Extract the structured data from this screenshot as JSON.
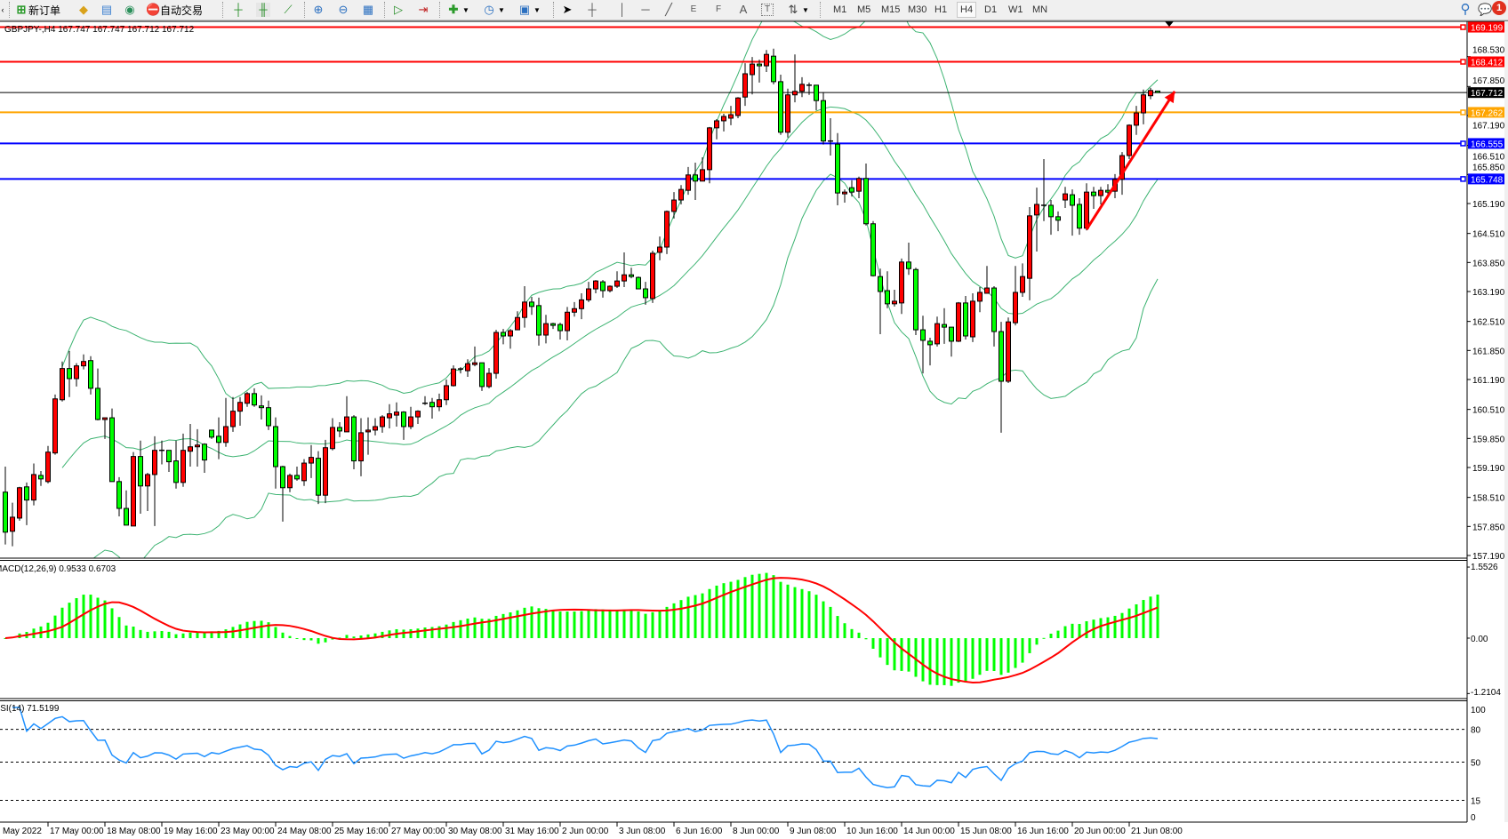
{
  "toolbar": {
    "new_order": "新订单",
    "auto_trading": "自动交易",
    "drawing_tools": {
      "fibo_fan": "E",
      "fibo_grid": "F",
      "text": "A",
      "text_label": "T"
    },
    "timeframes": [
      "M1",
      "M5",
      "M15",
      "M30",
      "H1",
      "H4",
      "D1",
      "W1",
      "MN"
    ],
    "active_timeframe": "H4",
    "notification_count": "1"
  },
  "chart_header": "GBPJPY-,H4  167.747 167.747 167.712 167.712",
  "chart_data": {
    "type": "candlestick",
    "symbol": "GBPJPY-",
    "timeframe": "H4",
    "colors": {
      "bull": "#ff0000",
      "bear": "#00ff00",
      "wick": "#000000",
      "bollinger": "#3cb371"
    },
    "bollinger": {
      "period": 20,
      "deviation": 2
    },
    "ohlc": [
      [
        158.63,
        159.21,
        157.44,
        157.72
      ],
      [
        157.74,
        158.39,
        157.4,
        158.06
      ],
      [
        158.04,
        158.75,
        157.98,
        158.73
      ],
      [
        158.75,
        158.85,
        157.88,
        158.45
      ],
      [
        158.45,
        159.28,
        158.33,
        159.03
      ],
      [
        159.01,
        159.11,
        158.77,
        158.93
      ],
      [
        158.87,
        159.68,
        158.83,
        159.54
      ],
      [
        159.52,
        160.85,
        159.48,
        160.75
      ],
      [
        160.73,
        161.6,
        160.69,
        161.44
      ],
      [
        161.44,
        161.84,
        160.79,
        161.21
      ],
      [
        161.21,
        161.56,
        161.03,
        161.5
      ],
      [
        161.5,
        161.76,
        161.42,
        161.6
      ],
      [
        161.62,
        161.72,
        160.85,
        160.99
      ],
      [
        160.99,
        161.44,
        160.26,
        160.28
      ],
      [
        160.28,
        160.32,
        159.84,
        160.32
      ],
      [
        160.32,
        160.53,
        158.87,
        158.87
      ],
      [
        158.87,
        158.97,
        158.08,
        158.26
      ],
      [
        158.26,
        158.67,
        157.88,
        157.88
      ],
      [
        157.86,
        159.54,
        157.86,
        159.44
      ],
      [
        159.44,
        159.8,
        158.14,
        158.77
      ],
      [
        158.77,
        159.07,
        158.2,
        159.03
      ],
      [
        159.03,
        159.9,
        157.86,
        159.58
      ],
      [
        159.58,
        159.8,
        159.26,
        159.57
      ],
      [
        159.58,
        159.58,
        159.09,
        159.32
      ],
      [
        159.34,
        159.8,
        158.71,
        158.85
      ],
      [
        158.85,
        159.96,
        158.75,
        159.58
      ],
      [
        159.56,
        160.18,
        159.21,
        159.66
      ],
      [
        159.66,
        160.06,
        159.21,
        159.7
      ],
      [
        159.72,
        159.74,
        159.07,
        159.36
      ],
      [
        160.04,
        160.04,
        159.84,
        159.88
      ],
      [
        159.9,
        160.33,
        159.38,
        159.76
      ],
      [
        159.76,
        160.77,
        159.66,
        160.12
      ],
      [
        160.12,
        160.79,
        160.0,
        160.47
      ],
      [
        160.47,
        160.79,
        160.14,
        160.67
      ],
      [
        160.65,
        160.91,
        160.57,
        160.87
      ],
      [
        160.87,
        160.99,
        160.57,
        160.61
      ],
      [
        160.59,
        160.83,
        160.28,
        160.55
      ],
      [
        160.55,
        160.71,
        160.04,
        160.14
      ],
      [
        160.12,
        160.33,
        158.71,
        159.21
      ],
      [
        159.21,
        159.23,
        157.96,
        158.73
      ],
      [
        158.73,
        159.05,
        158.63,
        159.01
      ],
      [
        159.01,
        159.21,
        158.89,
        158.93
      ],
      [
        158.89,
        159.38,
        158.77,
        159.29
      ],
      [
        159.29,
        159.7,
        158.95,
        159.42
      ],
      [
        159.4,
        159.56,
        158.36,
        158.56
      ],
      [
        158.56,
        159.82,
        158.38,
        159.64
      ],
      [
        159.62,
        160.31,
        159.58,
        160.1
      ],
      [
        160.1,
        160.22,
        159.88,
        160.02
      ],
      [
        160.0,
        160.81,
        160.0,
        160.34
      ],
      [
        160.34,
        160.38,
        159.15,
        159.34
      ],
      [
        159.34,
        160.31,
        158.99,
        159.98
      ],
      [
        160.0,
        160.33,
        159.48,
        160.04
      ],
      [
        160.04,
        160.31,
        159.92,
        160.12
      ],
      [
        160.12,
        160.38,
        159.98,
        160.34
      ],
      [
        160.32,
        160.63,
        160.08,
        160.41
      ],
      [
        160.38,
        160.67,
        160.12,
        160.45
      ],
      [
        160.45,
        160.47,
        159.82,
        160.12
      ],
      [
        160.12,
        160.57,
        160.06,
        160.34
      ],
      [
        160.34,
        160.49,
        160.18,
        160.47
      ],
      [
        160.65,
        160.81,
        160.61,
        160.65
      ],
      [
        160.67,
        160.77,
        160.3,
        160.57
      ],
      [
        160.57,
        160.87,
        160.47,
        160.73
      ],
      [
        160.73,
        161.19,
        160.61,
        161.05
      ],
      [
        161.05,
        161.51,
        161.03,
        161.43
      ],
      [
        161.41,
        161.47,
        161.33,
        161.43
      ],
      [
        161.39,
        161.65,
        161.25,
        161.55
      ],
      [
        161.53,
        161.94,
        161.49,
        161.57
      ],
      [
        161.57,
        161.57,
        160.93,
        161.03
      ],
      [
        161.03,
        161.45,
        160.99,
        161.33
      ],
      [
        161.33,
        162.32,
        161.21,
        162.26
      ],
      [
        162.26,
        162.34,
        161.99,
        162.18
      ],
      [
        162.18,
        162.34,
        161.89,
        162.3
      ],
      [
        162.32,
        162.74,
        162.32,
        162.6
      ],
      [
        162.6,
        163.31,
        162.37,
        162.95
      ],
      [
        162.95,
        163.07,
        162.66,
        162.85
      ],
      [
        162.87,
        163.05,
        161.96,
        162.2
      ],
      [
        162.2,
        162.66,
        162.01,
        162.46
      ],
      [
        162.46,
        162.48,
        162.34,
        162.42
      ],
      [
        162.44,
        162.48,
        162.1,
        162.3
      ],
      [
        162.3,
        162.84,
        162.08,
        162.72
      ],
      [
        162.72,
        162.95,
        162.62,
        162.8
      ],
      [
        162.8,
        163.15,
        162.56,
        163.0
      ],
      [
        163.0,
        163.41,
        162.95,
        163.25
      ],
      [
        163.25,
        163.45,
        163.15,
        163.43
      ],
      [
        163.41,
        163.45,
        163.05,
        163.21
      ],
      [
        163.21,
        163.33,
        163.17,
        163.31
      ],
      [
        163.31,
        163.65,
        163.27,
        163.43
      ],
      [
        163.43,
        164.08,
        163.29,
        163.57
      ],
      [
        163.57,
        163.73,
        163.49,
        163.53
      ],
      [
        163.51,
        163.53,
        163.25,
        163.25
      ],
      [
        163.25,
        163.41,
        162.89,
        163.05
      ],
      [
        163.03,
        164.12,
        162.93,
        164.06
      ],
      [
        164.08,
        164.44,
        163.9,
        164.2
      ],
      [
        164.2,
        165.03,
        164.04,
        165.01
      ],
      [
        165.01,
        165.45,
        164.85,
        165.27
      ],
      [
        165.27,
        165.61,
        165.17,
        165.51
      ],
      [
        165.49,
        166.02,
        165.39,
        165.84
      ],
      [
        165.84,
        166.12,
        165.27,
        165.7
      ],
      [
        165.7,
        166.24,
        165.7,
        165.96
      ],
      [
        165.96,
        166.93,
        165.65,
        166.91
      ],
      [
        166.91,
        167.11,
        166.65,
        167.07
      ],
      [
        167.07,
        167.23,
        166.83,
        167.17
      ],
      [
        167.13,
        167.41,
        166.97,
        167.21
      ],
      [
        167.19,
        167.61,
        167.13,
        167.59
      ],
      [
        167.61,
        168.38,
        167.41,
        168.14
      ],
      [
        168.12,
        168.52,
        167.67,
        168.36
      ],
      [
        168.36,
        168.46,
        167.94,
        168.32
      ],
      [
        168.32,
        168.68,
        168.18,
        168.58
      ],
      [
        168.54,
        168.71,
        167.9,
        167.96
      ],
      [
        167.96,
        168.12,
        166.75,
        166.81
      ],
      [
        166.81,
        167.8,
        166.69,
        167.66
      ],
      [
        167.66,
        168.58,
        167.49,
        167.74
      ],
      [
        167.74,
        168.06,
        167.61,
        167.9
      ],
      [
        167.88,
        167.94,
        167.66,
        167.88
      ],
      [
        167.88,
        167.88,
        167.31,
        167.53
      ],
      [
        167.53,
        167.72,
        166.53,
        166.61
      ],
      [
        166.61,
        167.13,
        166.28,
        166.61
      ],
      [
        166.54,
        166.79,
        165.15,
        165.43
      ],
      [
        165.41,
        165.51,
        165.21,
        165.45
      ],
      [
        165.55,
        165.72,
        165.35,
        165.45
      ],
      [
        165.47,
        165.8,
        165.31,
        165.76
      ],
      [
        165.76,
        166.1,
        164.69,
        164.73
      ],
      [
        164.73,
        164.79,
        163.53,
        163.55
      ],
      [
        163.53,
        163.71,
        162.22,
        163.19
      ],
      [
        163.21,
        163.65,
        162.81,
        162.91
      ],
      [
        162.91,
        163.23,
        162.85,
        162.97
      ],
      [
        162.93,
        163.94,
        162.68,
        163.86
      ],
      [
        163.86,
        164.3,
        163.57,
        163.71
      ],
      [
        163.69,
        163.73,
        162.2,
        162.32
      ],
      [
        162.32,
        162.64,
        161.33,
        162.08
      ],
      [
        162.06,
        162.14,
        161.51,
        161.98
      ],
      [
        162.0,
        162.62,
        161.94,
        162.46
      ],
      [
        162.44,
        162.81,
        162.0,
        162.38
      ],
      [
        162.38,
        162.38,
        161.71,
        162.06
      ],
      [
        162.06,
        162.95,
        162.04,
        162.93
      ],
      [
        162.93,
        163.09,
        162.1,
        162.18
      ],
      [
        162.16,
        163.15,
        162.04,
        162.97
      ],
      [
        162.97,
        163.29,
        162.72,
        163.17
      ],
      [
        163.15,
        163.77,
        163.15,
        163.27
      ],
      [
        163.27,
        163.31,
        161.94,
        162.28
      ],
      [
        162.28,
        162.5,
        159.98,
        161.15
      ],
      [
        161.15,
        162.6,
        161.11,
        162.5
      ],
      [
        162.48,
        163.77,
        162.42,
        163.17
      ],
      [
        163.17,
        163.83,
        163.07,
        163.53
      ],
      [
        163.49,
        165.11,
        162.99,
        164.91
      ],
      [
        164.93,
        165.55,
        164.1,
        165.17
      ],
      [
        165.15,
        166.2,
        164.79,
        165.15
      ],
      [
        165.15,
        165.27,
        164.48,
        164.89
      ],
      [
        164.89,
        165.01,
        164.56,
        164.81
      ],
      [
        165.27,
        165.57,
        165.09,
        165.41
      ],
      [
        165.39,
        165.51,
        164.46,
        165.15
      ],
      [
        165.17,
        165.31,
        164.48,
        164.63
      ],
      [
        164.63,
        165.65,
        164.58,
        165.45
      ],
      [
        165.45,
        165.57,
        165.07,
        165.37
      ],
      [
        165.37,
        165.57,
        165.17,
        165.49
      ],
      [
        165.49,
        165.63,
        165.37,
        165.45
      ],
      [
        165.47,
        165.86,
        165.31,
        165.74
      ],
      [
        165.74,
        166.36,
        165.39,
        166.28
      ],
      [
        166.28,
        166.99,
        166.2,
        166.97
      ],
      [
        166.97,
        167.41,
        166.75,
        167.25
      ],
      [
        167.25,
        167.78,
        166.99,
        167.66
      ],
      [
        167.64,
        167.82,
        167.56,
        167.76
      ],
      [
        167.747,
        167.747,
        167.712,
        167.712
      ]
    ],
    "price_axis": {
      "range": [
        157.19,
        169.2
      ],
      "ticks": [
        "168.530",
        "167.850",
        "167.190",
        "166.510",
        "165.850",
        "165.190",
        "164.510",
        "163.850",
        "163.190",
        "162.510",
        "161.850",
        "161.190",
        "160.510",
        "159.850",
        "159.190",
        "158.510",
        "157.850",
        "157.190"
      ]
    },
    "levels": [
      {
        "price": "169.199",
        "color": "#ff0000"
      },
      {
        "price": "168.412",
        "color": "#ff0000"
      },
      {
        "price": "167.262",
        "color": "#ffa500"
      },
      {
        "price": "166.555",
        "color": "#0000ff"
      },
      {
        "price": "165.748",
        "color": "#0000ff"
      }
    ],
    "current_price": "167.712",
    "trend_arrow": {
      "from": [
        152,
        164.6
      ],
      "to": [
        164.4,
        167.74
      ],
      "color": "#ff0000"
    },
    "time_labels": [
      "May 2022",
      "17 May 00:00",
      "18 May 08:00",
      "19 May 16:00",
      "23 May 00:00",
      "24 May 08:00",
      "25 May 16:00",
      "27 May 00:00",
      "30 May 08:00",
      "31 May 16:00",
      "2 Jun 00:00",
      "3 Jun 08:00",
      "6 Jun 16:00",
      "8 Jun 00:00",
      "9 Jun 08:00",
      "10 Jun 16:00",
      "14 Jun 00:00",
      "15 Jun 08:00",
      "16 Jun 16:00",
      "20 Jun 00:00",
      "21 Jun 08:00"
    ]
  },
  "macd": {
    "label": "MACD(12,26,9) 0.9533 0.6703",
    "params": [
      12,
      26,
      9
    ],
    "axis_labels": [
      "1.5526",
      "0.00",
      "-1.2104"
    ],
    "range": [
      -1.2104,
      1.5526
    ],
    "colors": {
      "histogram": "#00ff00",
      "signal": "#ff0000"
    }
  },
  "rsi": {
    "label": "RSI(14) 71.5199",
    "period": 14,
    "axis_labels": [
      "100",
      "80",
      "50",
      "15",
      "0"
    ],
    "levels": [
      80,
      50,
      15
    ],
    "color": "#1e90ff"
  }
}
